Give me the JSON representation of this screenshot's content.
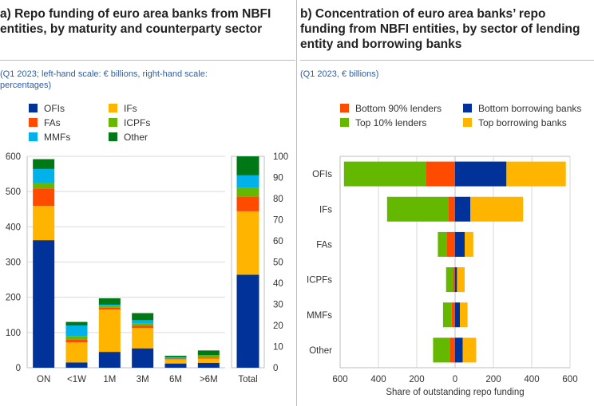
{
  "panel_a": {
    "title": "a) Repo funding of euro area banks from NBFI entities, by maturity and counterparty sector",
    "subtitle": "(Q1 2023; left-hand scale: € billions, right-hand scale: percentages)"
  },
  "panel_b": {
    "title": "b) Concentration of euro area banks’ repo funding from NBFI entities, by sector of lending entity and borrowing banks",
    "subtitle": "(Q1 2023, € billions)"
  },
  "chart_data": [
    {
      "type": "bar",
      "stacked": true,
      "categories": [
        "ON",
        "<1W",
        "1M",
        "3M",
        "6M",
        ">6M"
      ],
      "ylim": [
        0,
        600
      ],
      "yticks": [
        0,
        100,
        200,
        300,
        400,
        500,
        600
      ],
      "grid": true,
      "legend": "top",
      "series": [
        {
          "name": "OFIs",
          "color": "#003299",
          "values": [
            362,
            15,
            45,
            55,
            12,
            14
          ]
        },
        {
          "name": "IFs",
          "color": "#ffb400",
          "values": [
            97,
            57,
            120,
            58,
            12,
            12
          ]
        },
        {
          "name": "FAs",
          "color": "#ff4b00",
          "values": [
            50,
            8,
            5,
            6,
            2,
            3
          ]
        },
        {
          "name": "ICPFs",
          "color": "#65b800",
          "values": [
            15,
            10,
            6,
            6,
            2,
            5
          ]
        },
        {
          "name": "MMFs",
          "color": "#00b1ea",
          "values": [
            40,
            30,
            3,
            10,
            2,
            2
          ]
        },
        {
          "name": "Other",
          "color": "#007816",
          "values": [
            28,
            10,
            18,
            20,
            4,
            13
          ]
        }
      ]
    },
    {
      "type": "bar",
      "stacked": true,
      "categories": [
        "Total"
      ],
      "ylim": [
        0,
        100
      ],
      "yticks": [
        0,
        10,
        20,
        30,
        40,
        50,
        60,
        70,
        80,
        90,
        100
      ],
      "series": [
        {
          "name": "OFIs",
          "color": "#003299",
          "values": [
            44
          ]
        },
        {
          "name": "IFs",
          "color": "#ffb400",
          "values": [
            30
          ]
        },
        {
          "name": "FAs",
          "color": "#ff4b00",
          "values": [
            7
          ]
        },
        {
          "name": "ICPFs",
          "color": "#65b800",
          "values": [
            4
          ]
        },
        {
          "name": "MMFs",
          "color": "#00b1ea",
          "values": [
            6
          ]
        },
        {
          "name": "Other",
          "color": "#007816",
          "values": [
            9
          ]
        }
      ]
    },
    {
      "type": "bar",
      "orientation": "horizontal",
      "diverging": true,
      "categories": [
        "OFIs",
        "IFs",
        "FAs",
        "ICPFs",
        "MMFs",
        "Other"
      ],
      "xlim": [
        -600,
        600
      ],
      "xticks": [
        -600,
        -400,
        -200,
        0,
        200,
        400,
        600
      ],
      "xticklabels": [
        "600",
        "400",
        "200",
        "0",
        "200",
        "400",
        "600"
      ],
      "xlabel": "Share of outstanding repo funding",
      "grid": true,
      "legend": "top",
      "left_series": [
        {
          "name": "Bottom 90% lenders",
          "color": "#ff4b00",
          "values": [
            150,
            35,
            45,
            12,
            18,
            25
          ]
        },
        {
          "name": "Top 10% lenders",
          "color": "#65b800",
          "values": [
            430,
            320,
            45,
            35,
            45,
            90
          ]
        }
      ],
      "right_series": [
        {
          "name": "Bottom borrowing banks",
          "color": "#003299",
          "values": [
            268,
            80,
            50,
            10,
            25,
            40
          ]
        },
        {
          "name": "Top borrowing banks",
          "color": "#ffb400",
          "values": [
            310,
            275,
            45,
            40,
            40,
            70
          ]
        }
      ]
    }
  ]
}
